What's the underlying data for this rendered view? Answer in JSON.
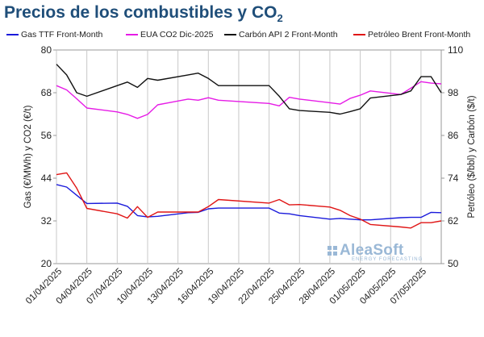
{
  "title": {
    "main": "Precios de los combustibles y CO",
    "sub": "2"
  },
  "watermark": {
    "brand": "AleaSoft",
    "tagline": "ENERGY FORECASTING"
  },
  "chart_data": {
    "type": "line",
    "x": [
      "01/04/2025",
      "02/04/2025",
      "03/04/2025",
      "04/04/2025",
      "07/04/2025",
      "08/04/2025",
      "09/04/2025",
      "10/04/2025",
      "11/04/2025",
      "14/04/2025",
      "15/04/2025",
      "16/04/2025",
      "17/04/2025",
      "22/04/2025",
      "23/04/2025",
      "24/04/2025",
      "25/04/2025",
      "28/04/2025",
      "29/04/2025",
      "30/04/2025",
      "01/05/2025",
      "02/05/2025",
      "05/05/2025",
      "06/05/2025",
      "07/05/2025",
      "08/05/2025",
      "09/05/2025"
    ],
    "x_ticks": [
      "01/04/2025",
      "04/04/2025",
      "07/04/2025",
      "10/04/2025",
      "13/04/2025",
      "16/04/2025",
      "19/04/2025",
      "22/04/2025",
      "25/04/2025",
      "28/04/2025",
      "01/05/2025",
      "04/05/2025",
      "07/05/2025"
    ],
    "series": [
      {
        "name": "Gas TTF Front-Month",
        "axis": "left",
        "color": "#1a1adb",
        "values": [
          42.2,
          41.5,
          39.2,
          36.9,
          37.0,
          36.1,
          33.5,
          33.1,
          33.3,
          34.3,
          34.4,
          35.4,
          35.6,
          35.6,
          34.2,
          34.0,
          33.5,
          32.5,
          32.7,
          32.5,
          32.3,
          32.3,
          32.9,
          33.0,
          33.0,
          34.4,
          34.3
        ]
      },
      {
        "name": "EUA CO2 Dic-2025",
        "axis": "left",
        "color": "#e61be6",
        "values": [
          70.0,
          68.8,
          66.3,
          63.7,
          62.6,
          61.9,
          60.8,
          61.9,
          64.6,
          66.2,
          65.9,
          66.6,
          65.9,
          65.0,
          64.3,
          66.7,
          66.2,
          65.2,
          64.8,
          66.4,
          67.3,
          68.5,
          67.5,
          69.3,
          71.1,
          70.7,
          70.5
        ]
      },
      {
        "name": "Carbón API 2 Front-Month",
        "axis": "right",
        "color": "#111111",
        "values": [
          106.0,
          103.0,
          98.0,
          97.0,
          100.0,
          101.0,
          99.5,
          102.0,
          101.5,
          103.0,
          103.5,
          102.0,
          100.0,
          100.0,
          97.0,
          93.5,
          93.0,
          92.5,
          92.0,
          92.7,
          93.5,
          96.5,
          97.5,
          98.5,
          102.5,
          102.5,
          98.0
        ]
      },
      {
        "name": "Petróleo Brent Front-Month",
        "axis": "right",
        "color": "#e01515",
        "values": [
          75.0,
          75.5,
          71.2,
          65.5,
          64.0,
          62.8,
          66.0,
          63.0,
          64.5,
          64.5,
          64.5,
          66.0,
          68.0,
          67.0,
          68.0,
          66.5,
          66.6,
          65.9,
          65.0,
          63.5,
          62.5,
          61.0,
          60.3,
          60.0,
          61.5,
          61.5,
          62.0
        ]
      }
    ],
    "ylabel": "Gas (€/MWh) y CO2 (€/t)",
    "y2label": "Petróleo ($/bbl) y Carbón ($/t)",
    "ylim": [
      20,
      80
    ],
    "yticks": [
      20,
      32,
      44,
      56,
      68,
      80
    ],
    "y2lim": [
      50,
      110
    ],
    "y2ticks": [
      50,
      62,
      74,
      86,
      98,
      110
    ],
    "grid": "vertical",
    "legend": "top"
  }
}
